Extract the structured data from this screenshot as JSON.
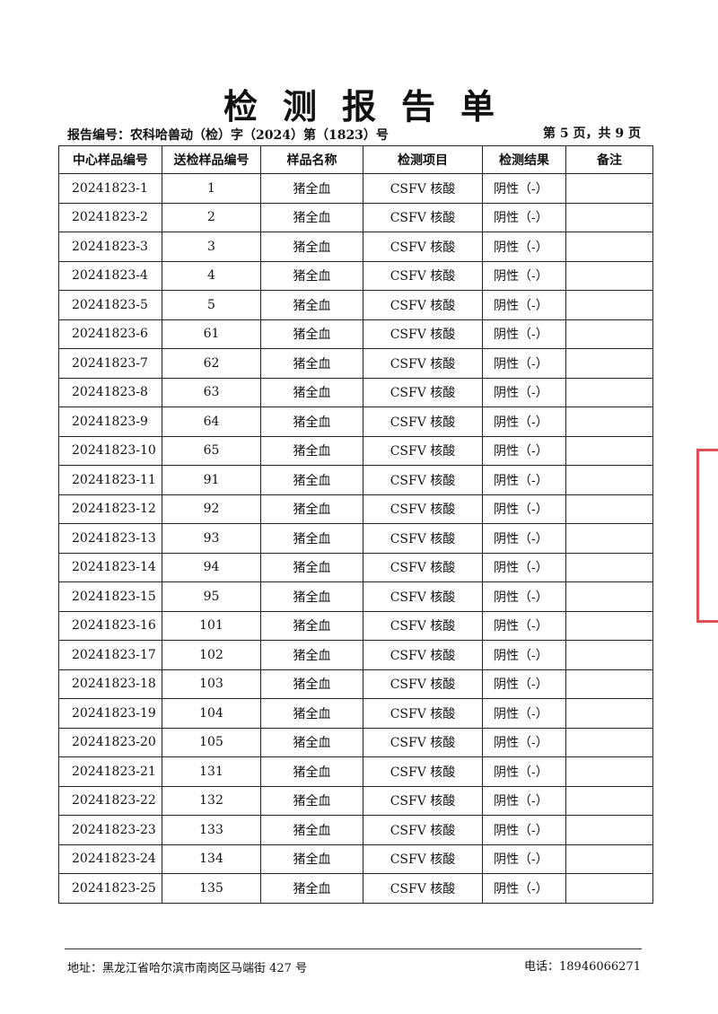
{
  "header": {
    "title": "检测报告单",
    "report_no": "报告编号：农科哈兽动（检）字（2024）第（1823）号",
    "page": "第 5 页，共 9 页"
  },
  "table": {
    "columns": [
      "中心样品编号",
      "送检样品编号",
      "样品名称",
      "检测项目",
      "检测结果",
      "备注"
    ],
    "rows": [
      [
        "20241823-1",
        "1",
        "猪全血",
        "CSFV 核酸",
        "阴性（-）"
      ],
      [
        "20241823-2",
        "2",
        "猪全血",
        "CSFV 核酸",
        "阴性（-）"
      ],
      [
        "20241823-3",
        "3",
        "猪全血",
        "CSFV 核酸",
        "阴性（-）"
      ],
      [
        "20241823-4",
        "4",
        "猪全血",
        "CSFV 核酸",
        "阴性（-）"
      ],
      [
        "20241823-5",
        "5",
        "猪全血",
        "CSFV 核酸",
        "阴性（-）"
      ],
      [
        "20241823-6",
        "61",
        "猪全血",
        "CSFV 核酸",
        "阴性（-）"
      ],
      [
        "20241823-7",
        "62",
        "猪全血",
        "CSFV 核酸",
        "阴性（-）"
      ],
      [
        "20241823-8",
        "63",
        "猪全血",
        "CSFV 核酸",
        "阴性（-）"
      ],
      [
        "20241823-9",
        "64",
        "猪全血",
        "CSFV 核酸",
        "阴性（-）"
      ],
      [
        "20241823-10",
        "65",
        "猪全血",
        "CSFV 核酸",
        "阴性（-）"
      ],
      [
        "20241823-11",
        "91",
        "猪全血",
        "CSFV 核酸",
        "阴性（-）"
      ],
      [
        "20241823-12",
        "92",
        "猪全血",
        "CSFV 核酸",
        "阴性（-）"
      ],
      [
        "20241823-13",
        "93",
        "猪全血",
        "CSFV 核酸",
        "阴性（-）"
      ],
      [
        "20241823-14",
        "94",
        "猪全血",
        "CSFV 核酸",
        "阴性（-）"
      ],
      [
        "20241823-15",
        "95",
        "猪全血",
        "CSFV 核酸",
        "阴性（-）"
      ],
      [
        "20241823-16",
        "101",
        "猪全血",
        "CSFV 核酸",
        "阴性（-）"
      ],
      [
        "20241823-17",
        "102",
        "猪全血",
        "CSFV 核酸",
        "阴性（-）"
      ],
      [
        "20241823-18",
        "103",
        "猪全血",
        "CSFV 核酸",
        "阴性（-）"
      ],
      [
        "20241823-19",
        "104",
        "猪全血",
        "CSFV 核酸",
        "阴性（-）"
      ],
      [
        "20241823-20",
        "105",
        "猪全血",
        "CSFV 核酸",
        "阴性（-）"
      ],
      [
        "20241823-21",
        "131",
        "猪全血",
        "CSFV 核酸",
        "阴性（-）"
      ],
      [
        "20241823-22",
        "132",
        "猪全血",
        "CSFV 核酸",
        "阴性（-）"
      ],
      [
        "20241823-23",
        "133",
        "猪全血",
        "CSFV 核酸",
        "阴性（-）"
      ],
      [
        "20241823-24",
        "134",
        "猪全血",
        "CSFV 核酸",
        "阴性（-）"
      ],
      [
        "20241823-25",
        "135",
        "猪全血",
        "CSFV 核酸",
        "阴性（-）"
      ]
    ]
  },
  "footer": {
    "address": "地址：黑龙江省哈尔滨市南岗区马端街 427 号",
    "phone": "电话：18946066271"
  }
}
